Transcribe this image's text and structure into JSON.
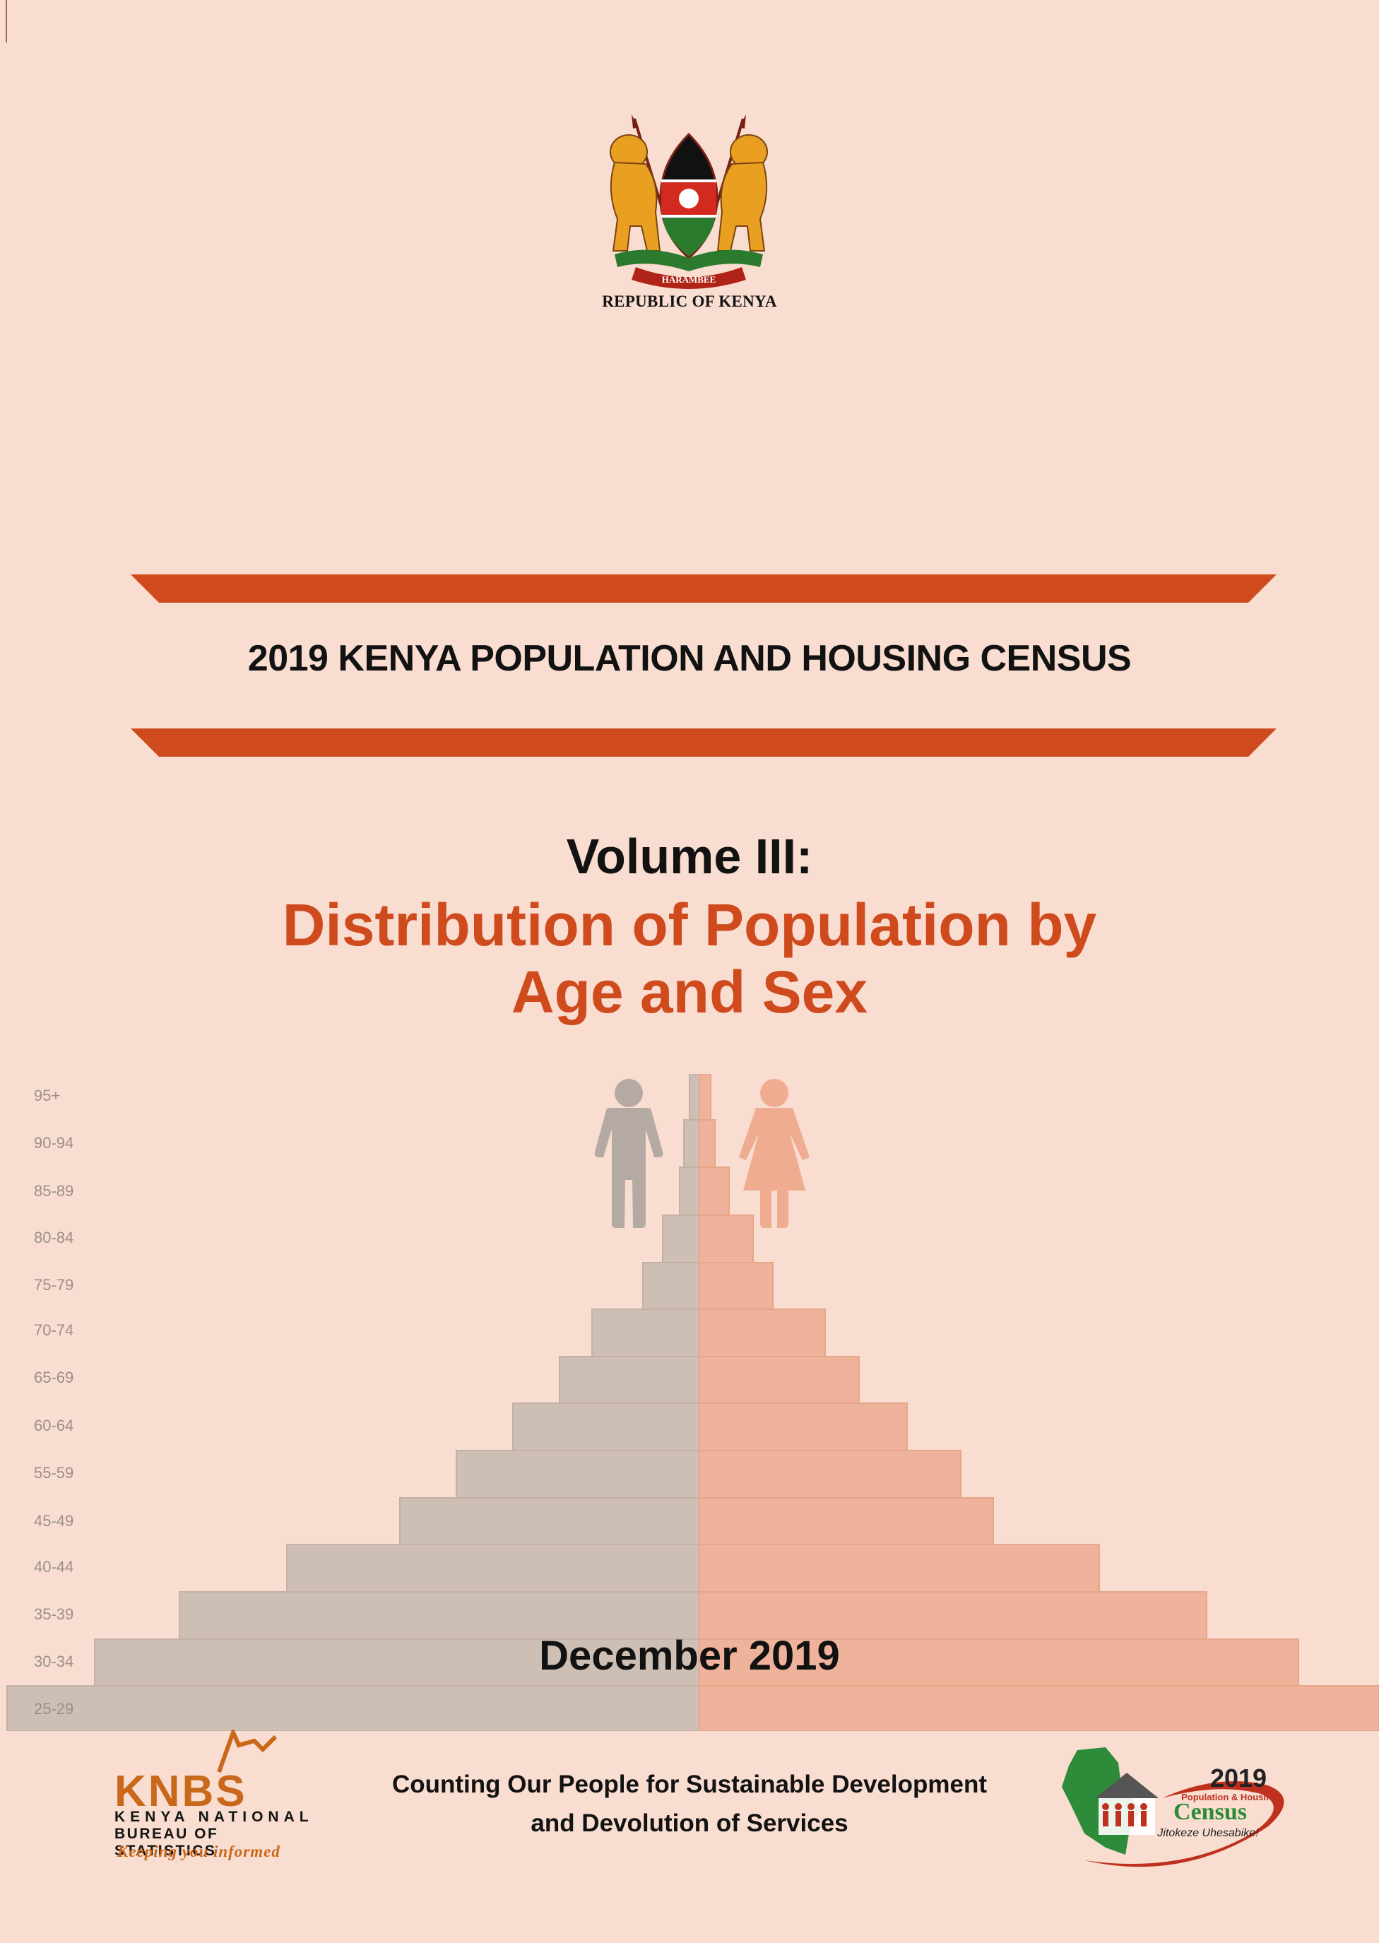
{
  "header": {
    "emblem_label": "HARAMBEE",
    "country": "REPUBLIC OF KENYA"
  },
  "title": {
    "census": "2019 KENYA POPULATION AND HOUSING CENSUS",
    "volume": "Volume III:",
    "subtitle_line1": "Distribution of Population by",
    "subtitle_line2": "Age and Sex"
  },
  "pyramid": {
    "age_groups": [
      "95+",
      "90-94",
      "85-89",
      "80-84",
      "75-79",
      "70-74",
      "65-69",
      "60-64",
      "55-59",
      "45-49",
      "40-44",
      "35-39",
      "30-34",
      "25-29"
    ],
    "colors": {
      "male": "#cdbfb4",
      "female": "#efb29a",
      "male_icon": "#b5aaa3",
      "female_icon": "#efac90"
    }
  },
  "date": "December 2019",
  "footer": {
    "slogan_line1": "Counting Our People for Sustainable Development",
    "slogan_line2": "and Devolution of Services",
    "knbs_acronym": "KNBS",
    "knbs_line1": "KENYA NATIONAL",
    "knbs_line2": "BUREAU OF STATISTICS",
    "knbs_motto": "Keeping you informed",
    "census_logo_year": "2019",
    "census_logo_small": "Population & Housing",
    "census_logo_word": "Census",
    "census_logo_motto": "Jitokeze Uhesabike!"
  },
  "colors": {
    "background": "#f8ddd0",
    "accent": "#cf4a1c",
    "title_text": "#121212",
    "knbs_orange": "#c9681a"
  }
}
